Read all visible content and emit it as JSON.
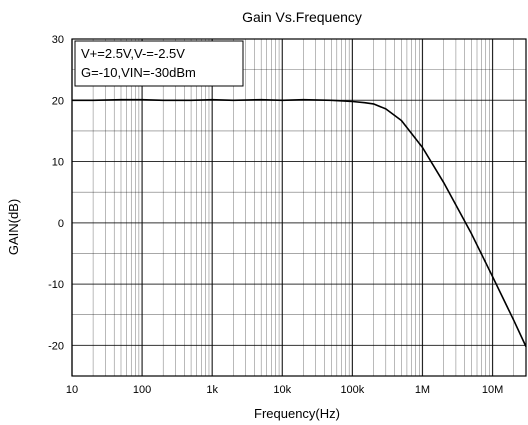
{
  "chart_data": {
    "type": "line",
    "title": "Gain Vs.Frequency",
    "xlabel": "Frequency(Hz)",
    "ylabel": "GAIN(dB)",
    "x_scale": "log",
    "xlim": [
      10,
      30000000
    ],
    "ylim": [
      -25,
      30
    ],
    "grid": true,
    "x_tick_values": [
      10,
      100,
      1000,
      10000,
      100000,
      1000000,
      10000000
    ],
    "x_tick_labels": [
      "10",
      "100",
      "1k",
      "10k",
      "100k",
      "1M",
      "10M"
    ],
    "y_tick_values": [
      30,
      20,
      10,
      0,
      -10,
      -20
    ],
    "y_tick_labels": [
      "30",
      "20",
      "10",
      "0",
      "-10",
      "-20"
    ],
    "annotations": [
      "V+=2.5V,V-=-2.5V",
      "G=-10,VIN=-30dBm"
    ],
    "series": [
      {
        "x": [
          10,
          20,
          50,
          100,
          200,
          500,
          1000,
          2000,
          5000,
          10000,
          20000,
          50000,
          100000,
          150000,
          200000,
          300000,
          500000,
          1000000,
          2000000,
          3000000,
          5000000,
          10000000,
          20000000,
          30000000
        ],
        "y": [
          20,
          20,
          20.1,
          20.1,
          20,
          20,
          20.1,
          20,
          20.1,
          20,
          20.1,
          20,
          19.8,
          19.6,
          19.4,
          18.6,
          16.7,
          12.3,
          6.6,
          2.9,
          -1.8,
          -8.8,
          -15.9,
          -20.2
        ]
      }
    ]
  },
  "colors": {
    "line": "#000000",
    "grid": "#000000",
    "background": "#ffffff"
  }
}
